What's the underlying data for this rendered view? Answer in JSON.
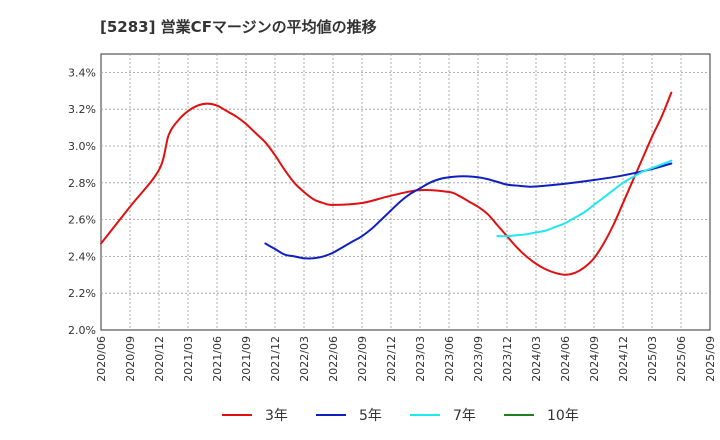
{
  "chart_data": {
    "type": "line",
    "title": "[5283]  営業CFマージンの平均値の推移",
    "xlabel": "",
    "ylabel": "",
    "ylim": [
      2.0,
      3.5
    ],
    "grid": true,
    "legend_position": "bottom",
    "y_ticks": [
      "2.0%",
      "2.2%",
      "2.4%",
      "2.6%",
      "2.8%",
      "3.0%",
      "3.2%",
      "3.4%"
    ],
    "y_tick_values": [
      2.0,
      2.2,
      2.4,
      2.6,
      2.8,
      3.0,
      3.2,
      3.4
    ],
    "x_ticks": [
      "2020/06",
      "2020/09",
      "2020/12",
      "2021/03",
      "2021/06",
      "2021/09",
      "2021/12",
      "2022/03",
      "2022/06",
      "2022/09",
      "2022/12",
      "2023/03",
      "2023/06",
      "2023/09",
      "2023/12",
      "2024/03",
      "2024/06",
      "2024/09",
      "2024/12",
      "2025/03",
      "2025/06",
      "2025/09"
    ],
    "series": [
      {
        "name": "3年",
        "color": "#e01010",
        "points": [
          [
            "2020/06",
            2.47
          ],
          [
            "2020/09",
            2.67
          ],
          [
            "2020/12",
            2.87
          ],
          [
            "2021/01",
            3.06
          ],
          [
            "2021/02",
            3.14
          ],
          [
            "2021/03",
            3.19
          ],
          [
            "2021/04",
            3.22
          ],
          [
            "2021/05",
            3.23
          ],
          [
            "2021/06",
            3.22
          ],
          [
            "2021/07",
            3.19
          ],
          [
            "2021/08",
            3.16
          ],
          [
            "2021/09",
            3.12
          ],
          [
            "2021/10",
            3.07
          ],
          [
            "2021/11",
            3.02
          ],
          [
            "2021/12",
            2.95
          ],
          [
            "2022/01",
            2.87
          ],
          [
            "2022/02",
            2.8
          ],
          [
            "2022/03",
            2.75
          ],
          [
            "2022/04",
            2.71
          ],
          [
            "2022/05",
            2.69
          ],
          [
            "2022/06",
            2.68
          ],
          [
            "2022/09",
            2.69
          ],
          [
            "2022/12",
            2.73
          ],
          [
            "2023/03",
            2.76
          ],
          [
            "2023/06",
            2.75
          ],
          [
            "2023/07",
            2.73
          ],
          [
            "2023/08",
            2.7
          ],
          [
            "2023/09",
            2.67
          ],
          [
            "2023/10",
            2.63
          ],
          [
            "2023/11",
            2.57
          ],
          [
            "2023/12",
            2.51
          ],
          [
            "2024/01",
            2.45
          ],
          [
            "2024/02",
            2.4
          ],
          [
            "2024/03",
            2.36
          ],
          [
            "2024/04",
            2.33
          ],
          [
            "2024/05",
            2.31
          ],
          [
            "2024/06",
            2.3
          ],
          [
            "2024/07",
            2.31
          ],
          [
            "2024/08",
            2.34
          ],
          [
            "2024/09",
            2.39
          ],
          [
            "2024/10",
            2.47
          ],
          [
            "2024/11",
            2.57
          ],
          [
            "2024/12",
            2.69
          ],
          [
            "2025/01",
            2.81
          ],
          [
            "2025/02",
            2.93
          ],
          [
            "2025/03",
            3.05
          ],
          [
            "2025/04",
            3.16
          ],
          [
            "2025/05",
            3.29
          ]
        ]
      },
      {
        "name": "5年",
        "color": "#1020c0",
        "points": [
          [
            "2021/11",
            2.47
          ],
          [
            "2021/12",
            2.44
          ],
          [
            "2022/01",
            2.41
          ],
          [
            "2022/02",
            2.4
          ],
          [
            "2022/03",
            2.39
          ],
          [
            "2022/04",
            2.39
          ],
          [
            "2022/05",
            2.4
          ],
          [
            "2022/06",
            2.42
          ],
          [
            "2022/07",
            2.45
          ],
          [
            "2022/08",
            2.48
          ],
          [
            "2022/09",
            2.51
          ],
          [
            "2022/10",
            2.55
          ],
          [
            "2022/11",
            2.6
          ],
          [
            "2022/12",
            2.65
          ],
          [
            "2023/01",
            2.7
          ],
          [
            "2023/02",
            2.74
          ],
          [
            "2023/03",
            2.77
          ],
          [
            "2023/04",
            2.8
          ],
          [
            "2023/05",
            2.82
          ],
          [
            "2023/06",
            2.83
          ],
          [
            "2023/07",
            2.835
          ],
          [
            "2023/08",
            2.835
          ],
          [
            "2023/09",
            2.83
          ],
          [
            "2023/10",
            2.82
          ],
          [
            "2023/11",
            2.805
          ],
          [
            "2023/12",
            2.79
          ],
          [
            "2024/01",
            2.785
          ],
          [
            "2024/02",
            2.78
          ],
          [
            "2024/03",
            2.78
          ],
          [
            "2024/06",
            2.795
          ],
          [
            "2024/09",
            2.815
          ],
          [
            "2024/12",
            2.84
          ],
          [
            "2025/03",
            2.875
          ],
          [
            "2025/05",
            2.905
          ]
        ]
      },
      {
        "name": "7年",
        "color": "#20e8f0",
        "points": [
          [
            "2023/11",
            2.51
          ],
          [
            "2023/12",
            2.51
          ],
          [
            "2024/01",
            2.515
          ],
          [
            "2024/02",
            2.52
          ],
          [
            "2024/03",
            2.53
          ],
          [
            "2024/04",
            2.54
          ],
          [
            "2024/05",
            2.56
          ],
          [
            "2024/06",
            2.58
          ],
          [
            "2024/07",
            2.61
          ],
          [
            "2024/08",
            2.64
          ],
          [
            "2024/09",
            2.68
          ],
          [
            "2024/10",
            2.72
          ],
          [
            "2024/11",
            2.76
          ],
          [
            "2024/12",
            2.8
          ],
          [
            "2025/01",
            2.83
          ],
          [
            "2025/02",
            2.86
          ],
          [
            "2025/03",
            2.88
          ],
          [
            "2025/04",
            2.9
          ],
          [
            "2025/05",
            2.92
          ]
        ]
      },
      {
        "name": "10年",
        "color": "#208020",
        "points": []
      }
    ]
  }
}
